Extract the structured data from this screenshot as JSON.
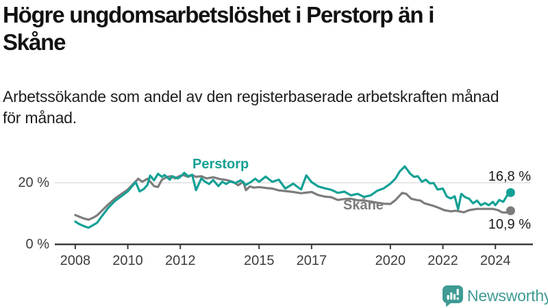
{
  "header": {
    "title": "Högre ungdomsarbetslöshet i Perstorp än i Skåne",
    "title_lines": [
      "Högre ungdomsarbetslöshet i Perstorp än i",
      "Skåne"
    ],
    "subtitle": "Arbetssökande som andel av den registerbaserade arbetskraften månad för månad.",
    "subtitle_lines": [
      "Arbetssökande som andel av den registerbaserade arbetskraften månad",
      "för månad."
    ]
  },
  "colors": {
    "perstorp": "#14a195",
    "skane": "#7c7c7c",
    "axis": "#3a3a3a",
    "gridline": "#d8d8d8",
    "value_label": "#1a1a1a",
    "brand_teal": "#3f9b94"
  },
  "chart_data": {
    "type": "line",
    "title": "Högre ungdomsarbetslöshet i Perstorp än i Skåne",
    "subtitle": "Arbetssökande som andel av den registerbaserade arbetskraften månad för månad.",
    "unit": "%",
    "xlim": [
      2007.22,
      2025.43
    ],
    "ylim": [
      0,
      29.33
    ],
    "grid": "horizontal gridline at 20 % only",
    "legend_position": "inline labels on lines, value labels at line ends",
    "x_ticks": [
      {
        "value": 2008,
        "label": "2008"
      },
      {
        "value": 2010,
        "label": "2010"
      },
      {
        "value": 2012,
        "label": "2012"
      },
      {
        "value": 2015,
        "label": "2015"
      },
      {
        "value": 2017,
        "label": "2017"
      },
      {
        "value": 2020,
        "label": "2020"
      },
      {
        "value": 2022,
        "label": "2022"
      },
      {
        "value": 2024,
        "label": "2024"
      }
    ],
    "y_ticks": [
      {
        "value": 0,
        "label": "0 %",
        "gridline": false
      },
      {
        "value": 20,
        "label": "20 %",
        "gridline": true
      }
    ],
    "series": [
      {
        "name": "Perstorp",
        "color": "#14a195",
        "end_label": "16,8 %",
        "end_value": 16.8,
        "x": [
          2008.0,
          2008.17,
          2008.33,
          2008.5,
          2008.67,
          2008.83,
          2009.0,
          2009.25,
          2009.5,
          2009.75,
          2010.0,
          2010.17,
          2010.3,
          2010.45,
          2010.6,
          2010.75,
          2010.85,
          2011.0,
          2011.15,
          2011.3,
          2011.4,
          2011.6,
          2011.7,
          2011.9,
          2012.0,
          2012.15,
          2012.3,
          2012.45,
          2012.6,
          2012.8,
          2012.95,
          2013.1,
          2013.25,
          2013.45,
          2013.6,
          2013.75,
          2013.9,
          2014.1,
          2014.3,
          2014.5,
          2014.7,
          2014.85,
          2015.0,
          2015.25,
          2015.5,
          2015.75,
          2016.0,
          2016.3,
          2016.6,
          2016.8,
          2017.0,
          2017.25,
          2017.5,
          2017.75,
          2018.0,
          2018.25,
          2018.5,
          2018.75,
          2019.0,
          2019.25,
          2019.5,
          2019.75,
          2020.0,
          2020.2,
          2020.35,
          2020.55,
          2020.75,
          2020.9,
          2021.05,
          2021.2,
          2021.35,
          2021.5,
          2021.65,
          2021.8,
          2022.0,
          2022.15,
          2022.3,
          2022.45,
          2022.58,
          2022.7,
          2022.85,
          2023.0,
          2023.15,
          2023.3,
          2023.45,
          2023.6,
          2023.75,
          2023.9,
          2024.0,
          2024.15,
          2024.3,
          2024.45,
          2024.58
        ],
        "y": [
          7.4,
          6.5,
          5.9,
          5.4,
          6.2,
          7.0,
          9.0,
          11.8,
          14.0,
          15.6,
          17.2,
          18.9,
          20.2,
          17.2,
          17.9,
          19.3,
          22.3,
          20.8,
          22.9,
          21.9,
          22.5,
          21.0,
          22.1,
          21.4,
          21.9,
          23.2,
          22.1,
          22.6,
          17.6,
          21.4,
          20.3,
          19.6,
          20.9,
          18.9,
          20.3,
          19.6,
          20.4,
          19.9,
          20.8,
          19.3,
          20.3,
          21.3,
          20.3,
          22.0,
          20.3,
          21.0,
          18.1,
          19.7,
          17.8,
          22.4,
          20.2,
          18.8,
          18.2,
          17.7,
          16.7,
          17.1,
          15.9,
          16.4,
          15.4,
          15.9,
          17.4,
          18.2,
          19.7,
          21.4,
          23.6,
          25.3,
          23.0,
          21.9,
          22.1,
          20.3,
          21.0,
          19.8,
          19.9,
          17.8,
          18.1,
          15.5,
          14.9,
          15.6,
          11.4,
          16.4,
          15.3,
          14.8,
          13.3,
          14.2,
          12.7,
          13.4,
          12.7,
          13.8,
          12.7,
          14.4,
          13.8,
          15.9,
          16.8
        ]
      },
      {
        "name": "Skåne",
        "color": "#7c7c7c",
        "end_label": "10,9 %",
        "end_value": 10.9,
        "x": [
          2008.0,
          2008.17,
          2008.33,
          2008.5,
          2008.67,
          2008.83,
          2009.0,
          2009.25,
          2009.5,
          2009.75,
          2010.0,
          2010.17,
          2010.4,
          2010.55,
          2010.75,
          2010.9,
          2011.0,
          2011.15,
          2011.3,
          2011.5,
          2011.65,
          2011.8,
          2011.95,
          2012.1,
          2012.3,
          2012.45,
          2012.6,
          2012.8,
          2013.0,
          2013.25,
          2013.5,
          2013.75,
          2014.0,
          2014.2,
          2014.4,
          2014.5,
          2014.65,
          2014.8,
          2015.0,
          2015.25,
          2015.5,
          2015.75,
          2016.0,
          2016.3,
          2016.6,
          2016.8,
          2017.0,
          2017.25,
          2017.5,
          2017.75,
          2018.0,
          2018.25,
          2018.5,
          2018.75,
          2019.0,
          2019.25,
          2019.5,
          2019.75,
          2020.0,
          2020.2,
          2020.45,
          2020.6,
          2020.8,
          2021.0,
          2021.15,
          2021.3,
          2021.6,
          2021.8,
          2022.05,
          2022.3,
          2022.5,
          2022.8,
          2023.0,
          2023.3,
          2023.6,
          2023.9,
          2024.1,
          2024.25,
          2024.4,
          2024.58
        ],
        "y": [
          9.5,
          8.9,
          8.4,
          8.0,
          8.6,
          9.4,
          10.8,
          12.9,
          14.8,
          16.3,
          17.8,
          19.3,
          21.3,
          20.3,
          21.3,
          19.9,
          18.9,
          18.6,
          21.0,
          21.9,
          22.1,
          21.4,
          22.1,
          22.5,
          21.9,
          22.5,
          21.9,
          22.1,
          21.4,
          21.8,
          21.2,
          20.9,
          20.3,
          19.2,
          20.3,
          17.6,
          18.8,
          18.4,
          18.6,
          18.3,
          18.1,
          17.5,
          17.3,
          17.0,
          16.6,
          16.8,
          17.0,
          16.0,
          15.5,
          15.3,
          14.4,
          14.7,
          14.8,
          14.3,
          14.2,
          13.9,
          13.5,
          13.2,
          13.1,
          14.4,
          16.7,
          16.4,
          14.8,
          14.4,
          14.2,
          13.3,
          12.6,
          12.0,
          11.1,
          10.7,
          10.9,
          10.4,
          11.1,
          11.5,
          11.5,
          11.5,
          11.1,
          10.4,
          10.3,
          10.9
        ]
      }
    ]
  },
  "footer": {
    "brand": "Newsworthy"
  }
}
